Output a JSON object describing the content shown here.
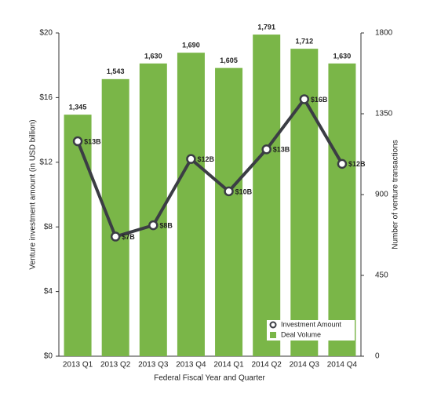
{
  "chart_data": {
    "type": "bar",
    "x_label": "Federal Fiscal Year and Quarter",
    "y_label": "Venture investment amount (in USD billion)",
    "y2_label": "Number of venture transactions",
    "categories": [
      "2013 Q1",
      "2013 Q2",
      "2013 Q3",
      "2013 Q4",
      "2014 Q1",
      "2014 Q2",
      "2014 Q3",
      "2014 Q4"
    ],
    "series": [
      {
        "name": "Investment Amount",
        "type": "line",
        "axis": "y",
        "color": "#3b3d44",
        "values": [
          13.3,
          7.4,
          8.1,
          12.2,
          10.2,
          12.8,
          15.9,
          11.9
        ],
        "value_labels": [
          "$13B",
          "$7B",
          "$8B",
          "$12B",
          "$10B",
          "$13B",
          "$16B",
          "$12B"
        ]
      },
      {
        "name": "Deal Volume",
        "type": "bar",
        "axis": "y2",
        "color": "#7ab648",
        "values": [
          1345,
          1543,
          1630,
          1690,
          1605,
          1791,
          1712,
          1630
        ],
        "value_labels": [
          "1,345",
          "1,543",
          "1,630",
          "1,690",
          "1,605",
          "1,791",
          "1,712",
          "1,630"
        ]
      }
    ],
    "ylim": [
      0,
      20
    ],
    "yticks": [
      {
        "value": 0,
        "label": "$0"
      },
      {
        "value": 4,
        "label": "$4"
      },
      {
        "value": 8,
        "label": "$8"
      },
      {
        "value": 12,
        "label": "$12"
      },
      {
        "value": 16,
        "label": "$16"
      },
      {
        "value": 20,
        "label": "$20"
      }
    ],
    "y2lim": [
      0,
      1800
    ],
    "y2ticks": [
      0,
      450,
      900,
      1350,
      1800
    ],
    "legend": "lower right"
  }
}
